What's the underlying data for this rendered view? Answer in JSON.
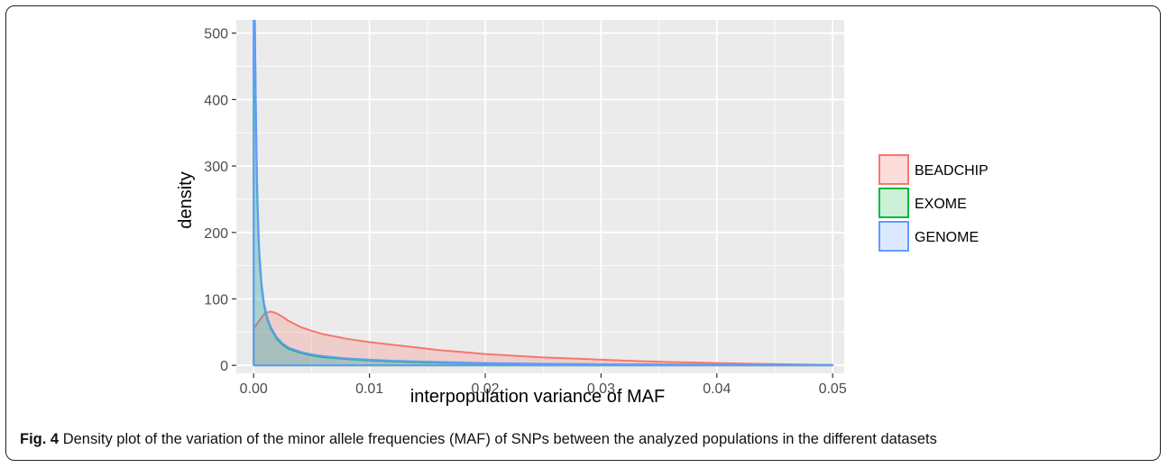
{
  "caption": {
    "label": "Fig. 4",
    "text": "Density plot of the variation of the minor allele frequencies (MAF) of SNPs between the analyzed populations in the different datasets"
  },
  "chart_data": {
    "type": "area",
    "title": "",
    "xlabel": "interpopulation variance of MAF",
    "ylabel": "density",
    "xlim": [
      -0.0015,
      0.051
    ],
    "ylim": [
      -12,
      520
    ],
    "x_ticks": [
      "0.00",
      "0.01",
      "0.02",
      "0.03",
      "0.04",
      "0.05"
    ],
    "y_ticks": [
      "0",
      "100",
      "200",
      "300",
      "400",
      "500"
    ],
    "grid": true,
    "legend_position": "right",
    "panel_background": "#ebebeb",
    "series": [
      {
        "name": "BEADCHIP",
        "line_color": "#f8766d",
        "fill_color": "#f8766d",
        "fill_opacity": 0.25,
        "points": [
          [
            0.0,
            55
          ],
          [
            0.0005,
            68
          ],
          [
            0.001,
            79
          ],
          [
            0.0015,
            81
          ],
          [
            0.002,
            78
          ],
          [
            0.0025,
            73
          ],
          [
            0.003,
            67
          ],
          [
            0.004,
            58
          ],
          [
            0.005,
            52
          ],
          [
            0.006,
            47
          ],
          [
            0.008,
            40
          ],
          [
            0.01,
            35
          ],
          [
            0.012,
            31
          ],
          [
            0.014,
            27
          ],
          [
            0.016,
            23
          ],
          [
            0.018,
            20
          ],
          [
            0.02,
            17
          ],
          [
            0.022,
            15
          ],
          [
            0.025,
            12
          ],
          [
            0.028,
            10
          ],
          [
            0.03,
            8.5
          ],
          [
            0.033,
            6.5
          ],
          [
            0.036,
            5
          ],
          [
            0.04,
            3.5
          ],
          [
            0.043,
            2.5
          ],
          [
            0.046,
            1.5
          ],
          [
            0.05,
            0.5
          ]
        ]
      },
      {
        "name": "EXOME",
        "line_color": "#00ba38",
        "fill_color": "#00ba38",
        "fill_opacity": 0.2,
        "points": [
          [
            0.0,
            520
          ],
          [
            0.0001,
            520
          ],
          [
            0.0002,
            360
          ],
          [
            0.0003,
            260
          ],
          [
            0.0004,
            200
          ],
          [
            0.0005,
            160
          ],
          [
            0.0007,
            115
          ],
          [
            0.0009,
            90
          ],
          [
            0.0012,
            68
          ],
          [
            0.0015,
            55
          ],
          [
            0.002,
            40
          ],
          [
            0.0025,
            31
          ],
          [
            0.003,
            25
          ],
          [
            0.004,
            19
          ],
          [
            0.005,
            15
          ],
          [
            0.006,
            12.5
          ],
          [
            0.008,
            9.5
          ],
          [
            0.01,
            7.5
          ],
          [
            0.012,
            6
          ],
          [
            0.015,
            4.5
          ],
          [
            0.02,
            3
          ],
          [
            0.025,
            2
          ],
          [
            0.03,
            1.5
          ],
          [
            0.04,
            0.8
          ],
          [
            0.05,
            0.4
          ]
        ]
      },
      {
        "name": "GENOME",
        "line_color": "#619cff",
        "fill_color": "#619cff",
        "fill_opacity": 0.22,
        "points": [
          [
            0.0,
            520
          ],
          [
            0.0001,
            520
          ],
          [
            0.0002,
            380
          ],
          [
            0.0003,
            275
          ],
          [
            0.0004,
            210
          ],
          [
            0.0005,
            168
          ],
          [
            0.0007,
            120
          ],
          [
            0.0009,
            93
          ],
          [
            0.0012,
            71
          ],
          [
            0.0015,
            57
          ],
          [
            0.002,
            42
          ],
          [
            0.0025,
            33
          ],
          [
            0.003,
            27
          ],
          [
            0.004,
            20.5
          ],
          [
            0.005,
            16.5
          ],
          [
            0.006,
            14
          ],
          [
            0.008,
            10.5
          ],
          [
            0.01,
            8.5
          ],
          [
            0.012,
            7
          ],
          [
            0.015,
            5.5
          ],
          [
            0.02,
            3.5
          ],
          [
            0.025,
            2.5
          ],
          [
            0.03,
            1.8
          ],
          [
            0.04,
            1
          ],
          [
            0.05,
            0.5
          ]
        ]
      }
    ]
  }
}
